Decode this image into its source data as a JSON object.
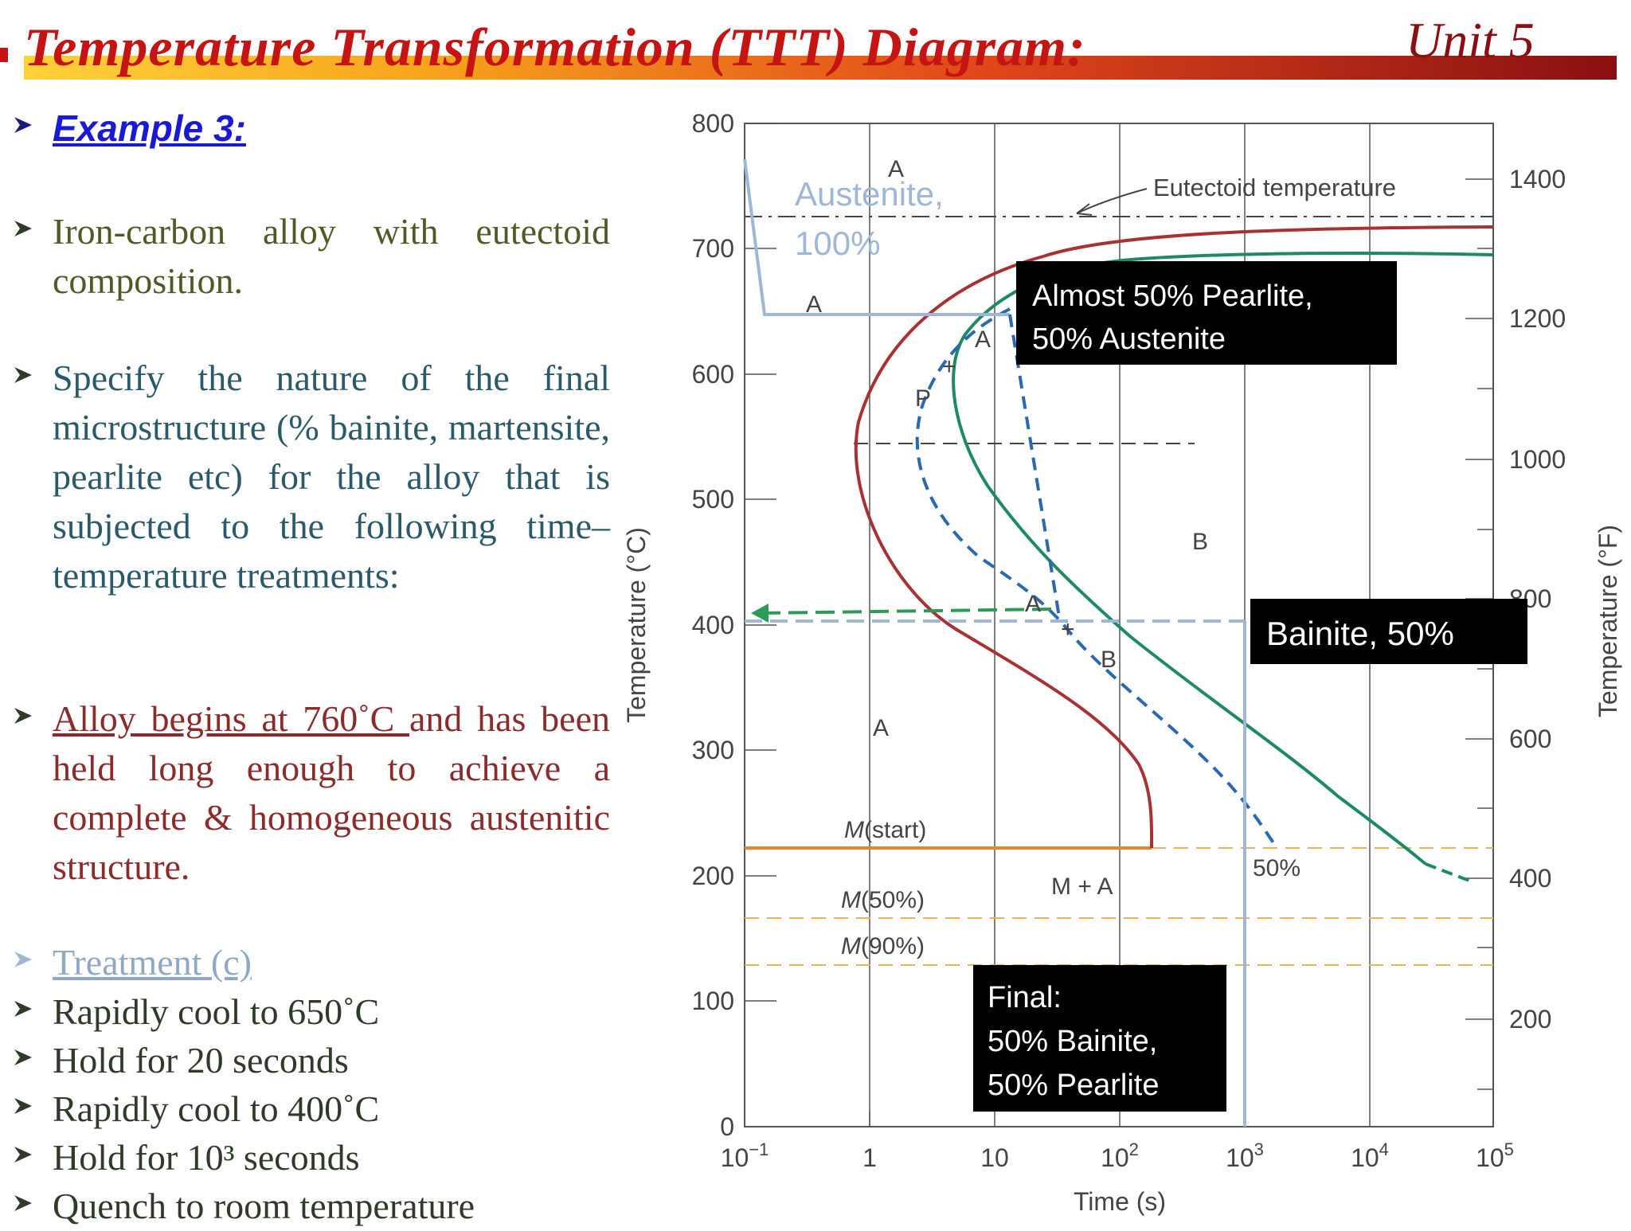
{
  "header": {
    "title": "Temperature Transformation (TTT) Diagram:",
    "unit": "Unit 5"
  },
  "content": {
    "example": "Example 3: ",
    "p1": "Iron-carbon alloy with eutectoid composition.",
    "p2": "Specify the nature of the final microstructure (% bainite, martensite, pearlite etc) for the alloy that is subjected to the following time–temperature treatments:",
    "p3_underline": "Alloy begins at 760˚C ",
    "p3_rest": "and has been held long enough to achieve a complete & homogeneous austenitic structure.",
    "treatment": "Treatment (c)",
    "steps": [
      "Rapidly cool to 650˚C",
      "Hold for 20 seconds",
      "Rapidly cool to 400˚C",
      "Hold for 10³ seconds",
      "Quench to room temperature"
    ]
  },
  "diagram": {
    "y_left_label": "Temperature (°C)",
    "y_right_label": "Temperature (°F)",
    "x_label": "Time (s)",
    "y_left_ticks": [
      "0",
      "100",
      "200",
      "300",
      "400",
      "500",
      "600",
      "700",
      "800"
    ],
    "y_right_ticks": [
      "200",
      "400",
      "600",
      "800",
      "1000",
      "1200",
      "1400"
    ],
    "x_ticks": [
      {
        "base": "10",
        "exp": "−1"
      },
      {
        "base": "1",
        "exp": ""
      },
      {
        "base": "10",
        "exp": ""
      },
      {
        "base": "10",
        "exp": "2"
      },
      {
        "base": "10",
        "exp": "3"
      },
      {
        "base": "10",
        "exp": "4"
      },
      {
        "base": "10",
        "exp": "5"
      }
    ],
    "eutectoid_label": "Eutectoid temperature",
    "region_labels": {
      "a_top": "A",
      "a_hold": "A",
      "a_mid": "A",
      "a_lower": "A",
      "a_curve": "A",
      "p": "P",
      "b": "B",
      "b_right": "B",
      "plus1": "+",
      "plus2": "+",
      "m_plus_a": "M + A",
      "pct50": "50%"
    },
    "m_labels": {
      "start_italic": "M",
      "start_rest": "(start)",
      "m50_italic": "M",
      "m50_rest": "(50%)",
      "m90_italic": "M",
      "m90_rest": "(90%)"
    },
    "austenite_note": [
      "Austenite,",
      "100%"
    ],
    "box_pearlite": [
      "Almost 50% Pearlite,",
      "50% Austenite"
    ],
    "box_bainite": "Bainite, 50%",
    "box_final": [
      "Final:",
      "50% Bainite,",
      "50% Pearlite"
    ],
    "colors": {
      "start_curve": "#a83232",
      "end_curve": "#1f8a62",
      "dashed_path": "#2a68b0",
      "path_light": "#9fb6d6",
      "green_arrow": "#2e9a5a",
      "m_start": "#e8862a",
      "m_dashed": "#e8b25a"
    }
  }
}
